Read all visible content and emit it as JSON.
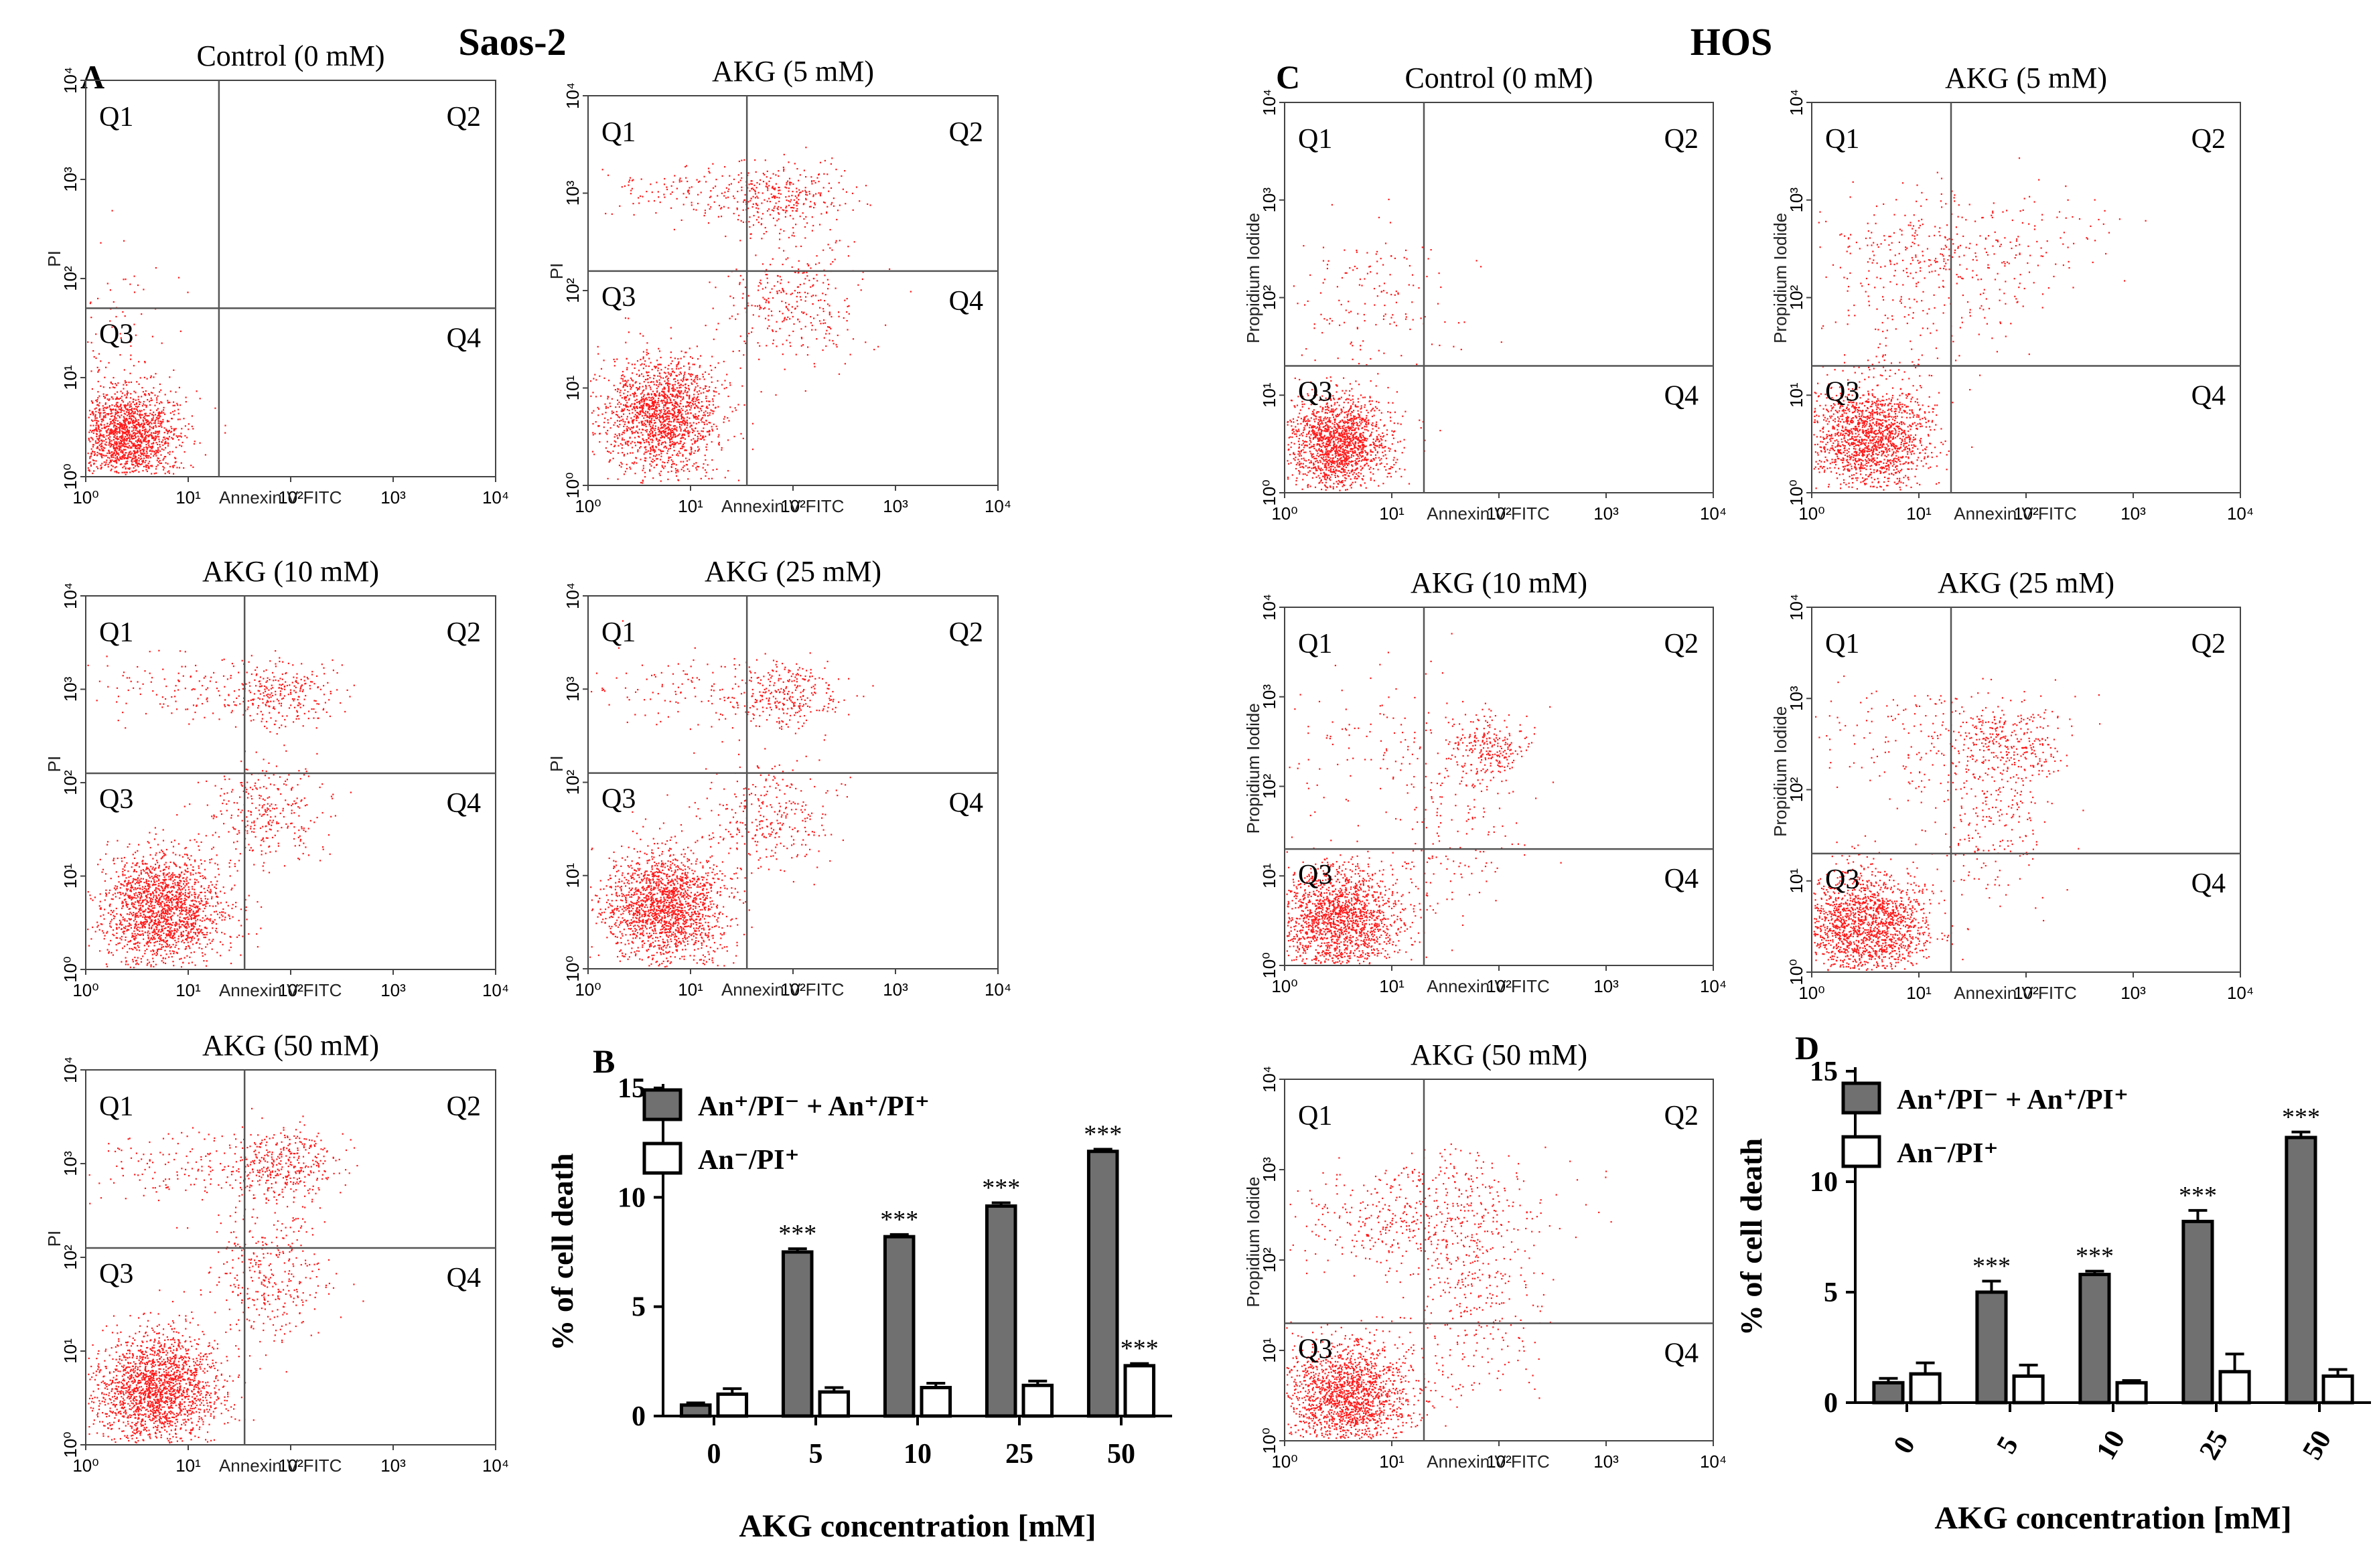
{
  "headers": {
    "left": "Saos-2",
    "right": "HOS"
  },
  "panel_letters": {
    "A": "A",
    "B": "B",
    "C": "C",
    "D": "D"
  },
  "quadrant_labels": [
    "Q1",
    "Q2",
    "Q3",
    "Q4"
  ],
  "flow": {
    "tick_labels": [
      "10⁰",
      "10¹",
      "10²",
      "10³",
      "10⁴"
    ],
    "saos_xlabel": "Annexin V FITC",
    "saos_ylabel": "PI",
    "hos_xlabel": "Annexin V FITC",
    "hos_ylabel": "Propidium Iodide",
    "point_color": "#ff1a1a",
    "plots": [
      {
        "id": "saos-0",
        "cell": "Saos-2",
        "title": "Control (0 mM)",
        "gate": [
          1.3,
          1.7
        ]
      },
      {
        "id": "saos-5",
        "cell": "Saos-2",
        "title": "AKG (5 mM)",
        "gate": [
          1.55,
          2.2
        ]
      },
      {
        "id": "saos-10",
        "cell": "Saos-2",
        "title": "AKG (10 mM)",
        "gate": [
          1.55,
          2.1
        ]
      },
      {
        "id": "saos-25",
        "cell": "Saos-2",
        "title": "AKG (25 mM)",
        "gate": [
          1.55,
          2.1
        ]
      },
      {
        "id": "saos-50",
        "cell": "Saos-2",
        "title": "AKG (50 mM)",
        "gate": [
          1.55,
          2.1
        ]
      },
      {
        "id": "hos-0",
        "cell": "HOS",
        "title": "Control (0 mM)",
        "gate": [
          1.3,
          1.3
        ]
      },
      {
        "id": "hos-5",
        "cell": "HOS",
        "title": "AKG (5 mM)",
        "gate": [
          1.3,
          1.3
        ]
      },
      {
        "id": "hos-10",
        "cell": "HOS",
        "title": "AKG (10 mM)",
        "gate": [
          1.3,
          1.3
        ]
      },
      {
        "id": "hos-25",
        "cell": "HOS",
        "title": "AKG (25 mM)",
        "gate": [
          1.3,
          1.3
        ]
      },
      {
        "id": "hos-50",
        "cell": "HOS",
        "title": "AKG (50 mM)",
        "gate": [
          1.3,
          1.3
        ]
      }
    ]
  },
  "chart_data": [
    {
      "type": "bar",
      "panel": "B",
      "categories": [
        "0",
        "5",
        "10",
        "25",
        "50"
      ],
      "xlabel": "AKG concentration [mM]",
      "ylabel": "% of cell death",
      "ylim": [
        0,
        15
      ],
      "yticks": [
        0,
        5,
        10,
        15
      ],
      "series": [
        {
          "name": "An⁺/PI⁻ + An⁺/PI⁺",
          "values": [
            0.5,
            7.5,
            8.2,
            9.6,
            12.1
          ],
          "errors": [
            0.1,
            0.15,
            0.1,
            0.15,
            0.1
          ],
          "fill": "#707070"
        },
        {
          "name": "An⁻/PI⁺",
          "values": [
            1.0,
            1.1,
            1.3,
            1.4,
            2.3
          ],
          "errors": [
            0.25,
            0.2,
            0.2,
            0.2,
            0.1
          ],
          "fill": "#ffffff"
        }
      ],
      "significance": {
        "An⁺/PI⁻ + An⁺/PI⁺": [
          "",
          "***",
          "***",
          "***",
          "***"
        ],
        "An⁻/PI⁺": [
          "",
          "",
          "",
          "",
          "***"
        ]
      }
    },
    {
      "type": "bar",
      "panel": "D",
      "categories": [
        "0",
        "5",
        "10",
        "25",
        "50"
      ],
      "xlabel": "AKG concentration [mM]",
      "ylabel": "% of cell death",
      "ylim": [
        0,
        15
      ],
      "yticks": [
        0,
        5,
        10,
        15
      ],
      "series": [
        {
          "name": "An⁺/PI⁻ + An⁺/PI⁺",
          "values": [
            0.9,
            5.0,
            5.8,
            8.2,
            12.0
          ],
          "errors": [
            0.2,
            0.5,
            0.15,
            0.5,
            0.25
          ],
          "fill": "#707070"
        },
        {
          "name": "An⁻/PI⁺",
          "values": [
            1.3,
            1.2,
            0.9,
            1.4,
            1.2
          ],
          "errors": [
            0.5,
            0.5,
            0.1,
            0.8,
            0.3
          ],
          "fill": "#ffffff"
        }
      ],
      "significance": {
        "An⁺/PI⁻ + An⁺/PI⁺": [
          "",
          "***",
          "***",
          "***",
          "***"
        ],
        "An⁻/PI⁺": [
          "",
          "",
          "",
          "",
          ""
        ]
      }
    }
  ]
}
